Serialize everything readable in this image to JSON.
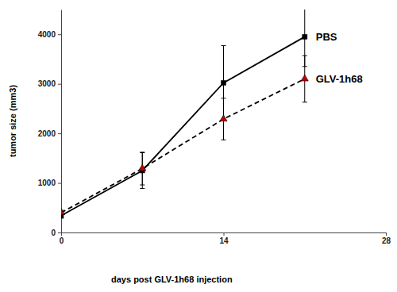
{
  "chart_data": {
    "type": "line",
    "x_label": "days post GLV-1h68 injection",
    "y_label": "tumor size (mm3)",
    "x": [
      0,
      7,
      14,
      21
    ],
    "series": [
      {
        "name": "PBS",
        "color": "#000000",
        "marker": "square",
        "line_style": "solid",
        "values": [
          340,
          1250,
          3020,
          3950
        ],
        "errors": [
          50,
          360,
          750,
          600
        ]
      },
      {
        "name": "GLV-1h68",
        "color": "#c00000",
        "marker": "triangle",
        "line_style": "dashed",
        "values": [
          400,
          1290,
          2290,
          3100
        ],
        "errors": [
          50,
          330,
          420,
          470
        ]
      }
    ],
    "xlim": [
      0,
      28
    ],
    "xticks": [
      0,
      14,
      28
    ],
    "ylim": [
      0,
      4500
    ],
    "yticks": [
      0,
      1000,
      2000,
      3000,
      4000
    ],
    "grid": false
  }
}
